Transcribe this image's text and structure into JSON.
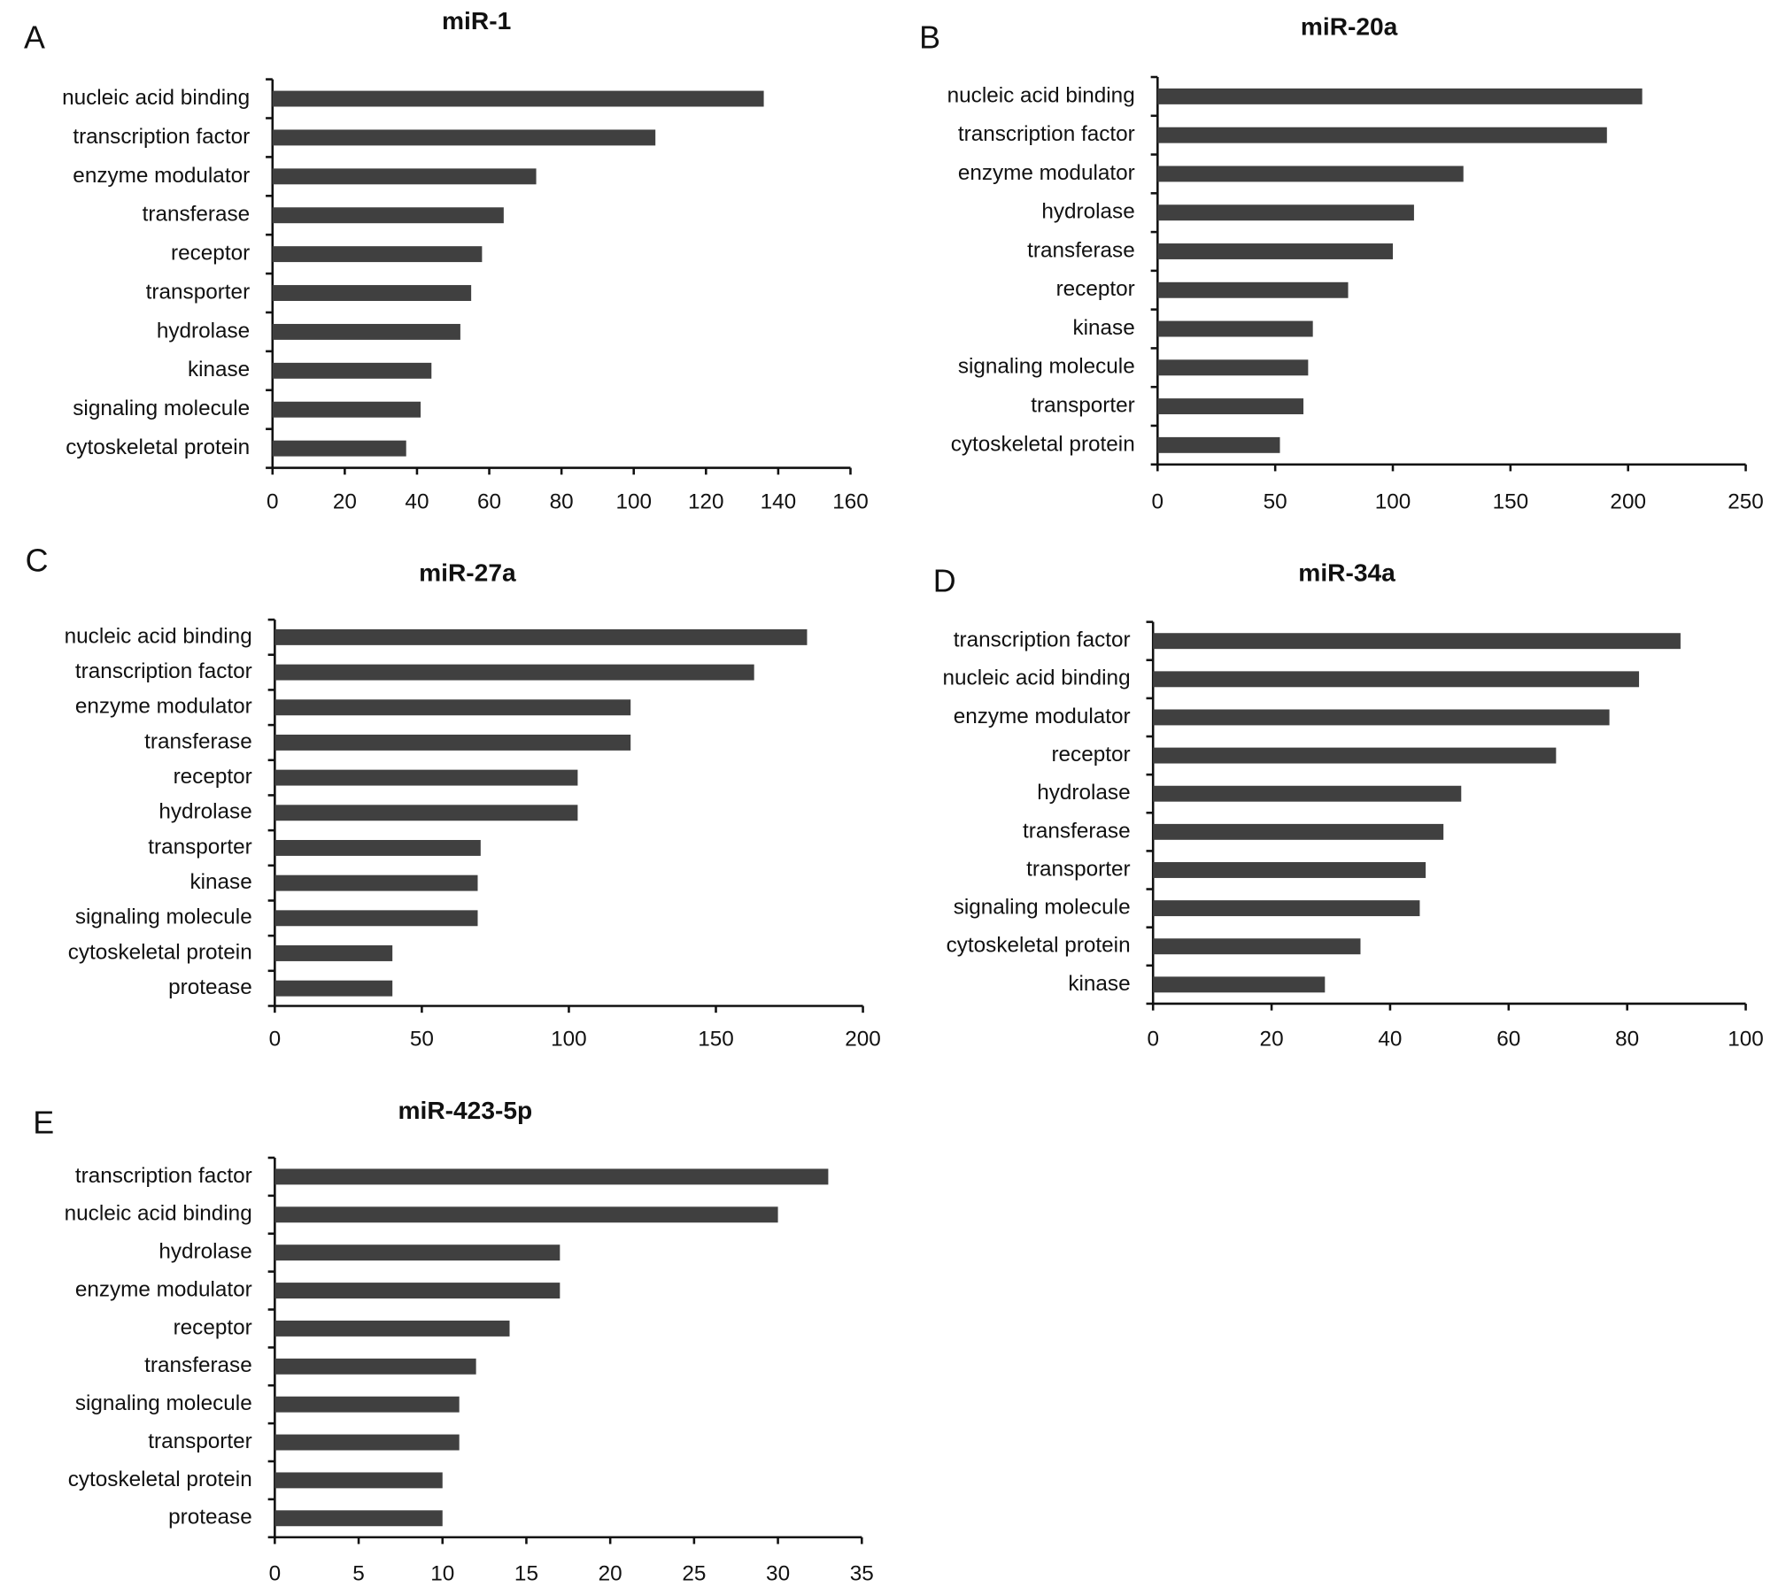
{
  "chart_data": [
    {
      "type": "bar",
      "orientation": "horizontal",
      "panel": "A",
      "title": "miR-1",
      "color": "#404040",
      "categories": [
        "nucleic acid binding",
        "transcription factor",
        "enzyme modulator",
        "transferase",
        "receptor",
        "transporter",
        "hydrolase",
        "kinase",
        "signaling molecule",
        "cytoskeletal protein"
      ],
      "values": [
        136,
        106,
        73,
        64,
        58,
        55,
        52,
        44,
        41,
        37
      ],
      "xlim": [
        0,
        160
      ],
      "xticks": [
        0,
        20,
        40,
        60,
        80,
        100,
        120,
        140,
        160
      ]
    },
    {
      "type": "bar",
      "orientation": "horizontal",
      "panel": "B",
      "title": "miR-20a",
      "color": "#404040",
      "categories": [
        "nucleic acid binding",
        "transcription factor",
        "enzyme modulator",
        "hydrolase",
        "transferase",
        "receptor",
        "kinase",
        "signaling molecule",
        "transporter",
        "cytoskeletal protein"
      ],
      "values": [
        206,
        191,
        130,
        109,
        100,
        81,
        66,
        64,
        62,
        52
      ],
      "xlim": [
        0,
        250
      ],
      "xticks": [
        0,
        50,
        100,
        150,
        200,
        250
      ]
    },
    {
      "type": "bar",
      "orientation": "horizontal",
      "panel": "C",
      "title": "miR-27a",
      "color": "#404040",
      "categories": [
        "nucleic acid binding",
        "transcription factor",
        "enzyme modulator",
        "transferase",
        "receptor",
        "hydrolase",
        "transporter",
        "kinase",
        "signaling molecule",
        "cytoskeletal protein",
        "protease"
      ],
      "values": [
        181,
        163,
        121,
        121,
        103,
        103,
        70,
        69,
        69,
        40,
        40
      ],
      "xlim": [
        0,
        200
      ],
      "xticks": [
        0,
        50,
        100,
        150,
        200
      ]
    },
    {
      "type": "bar",
      "orientation": "horizontal",
      "panel": "D",
      "title": "miR-34a",
      "color": "#404040",
      "categories": [
        "transcription factor",
        "nucleic acid binding",
        "enzyme modulator",
        "receptor",
        "hydrolase",
        "transferase",
        "transporter",
        "signaling molecule",
        "cytoskeletal protein",
        "kinase"
      ],
      "values": [
        89,
        82,
        77,
        68,
        52,
        49,
        46,
        45,
        35,
        29
      ],
      "xlim": [
        0,
        100
      ],
      "xticks": [
        0,
        20,
        40,
        60,
        80,
        100
      ]
    },
    {
      "type": "bar",
      "orientation": "horizontal",
      "panel": "E",
      "title": "miR-423-5p",
      "color": "#404040",
      "categories": [
        "transcription factor",
        "nucleic acid binding",
        "hydrolase",
        "enzyme modulator",
        "receptor",
        "transferase",
        "signaling molecule",
        "transporter",
        "cytoskeletal protein",
        "protease"
      ],
      "values": [
        33,
        30,
        17,
        17,
        14,
        12,
        11,
        11,
        10,
        10
      ],
      "xlim": [
        0,
        35
      ],
      "xticks": [
        0,
        5,
        10,
        15,
        20,
        25,
        30,
        35
      ]
    }
  ]
}
